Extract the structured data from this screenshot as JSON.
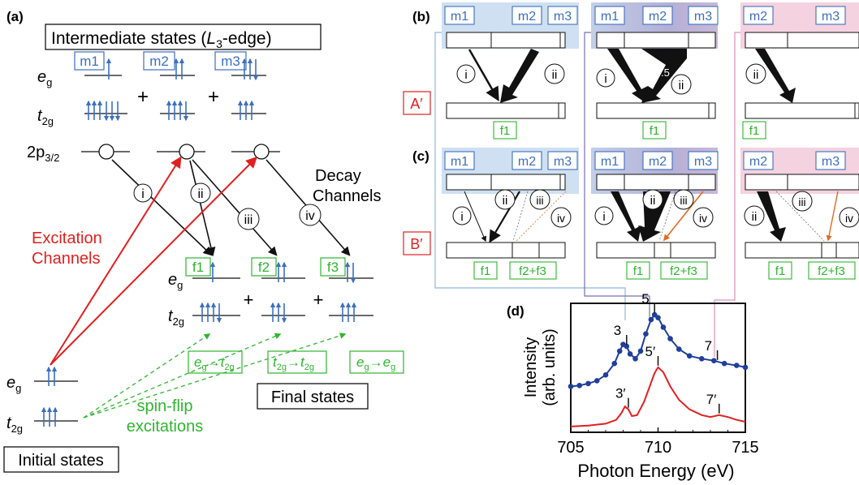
{
  "panel_labels": {
    "a": "(a)",
    "b": "(b)",
    "c": "(c)",
    "d": "(d)"
  },
  "intermediate_title": {
    "main": "Intermediate states (",
    "italic": "L",
    "sub": "3",
    "tail": "-edge)"
  },
  "modes": {
    "m1": "m1",
    "m2": "m2",
    "m3": "m3"
  },
  "finals": {
    "f1": "f1",
    "f2": "f2",
    "f3": "f3",
    "f23": "f2+f3"
  },
  "orbitals": {
    "eg_main": "e",
    "eg_sub": "g",
    "t2g_main": "t",
    "t2g_sub": "2g",
    "core_main": "2p",
    "core_sub": "3/2"
  },
  "plus": "+",
  "roman": {
    "i": "i",
    "ii": "ii",
    "iii": "iii",
    "iv": "iv"
  },
  "text": {
    "decay1": "Decay",
    "decay2": "Channels",
    "excit1": "Excitation",
    "excit2": "Channels",
    "spinflip1": "spin-flip",
    "spinflip2": "excitations",
    "final_states": "Final states",
    "initial_states": "Initial states",
    "scale": "×0.5",
    "row_A": "A′",
    "row_B": "B′"
  },
  "transitions": {
    "t1": {
      "a": "e",
      "as": "g",
      "b": "t",
      "bs": "2g"
    },
    "t2": {
      "a": "t",
      "as": "2g",
      "b": "t",
      "bs": "2g"
    },
    "t3": {
      "a": "e",
      "as": "g",
      "b": "e",
      "bs": "g"
    }
  },
  "colors": {
    "blue": "#3d6fc0",
    "green": "#2fb52f",
    "red": "#e02020",
    "orange": "#e06a20",
    "dark_blue": "#1f3f9a",
    "bg_blue": "#cfe0f2",
    "bg_purple": "#b9b4d8",
    "bg_pink": "#f5d2e0"
  },
  "chart_data": {
    "type": "line",
    "xlabel": "Photon Energy (eV)",
    "ylabel": [
      "Intensity",
      "(arb. units)"
    ],
    "xlim": [
      705,
      715
    ],
    "xticks": [
      "705",
      "710",
      "715"
    ],
    "grid": false,
    "series": [
      {
        "color": "#1f3f9a",
        "marker": "circle",
        "x": [
          705.0,
          705.5,
          706.0,
          706.5,
          707.0,
          707.5,
          707.8,
          708.0,
          708.2,
          708.4,
          708.7,
          709.0,
          709.3,
          709.6,
          709.8,
          710.0,
          710.3,
          710.7,
          711.2,
          711.8,
          712.5,
          713.2,
          713.8,
          714.5,
          715.0
        ],
        "y": [
          0.18,
          0.19,
          0.21,
          0.24,
          0.3,
          0.42,
          0.55,
          0.62,
          0.6,
          0.52,
          0.47,
          0.55,
          0.73,
          0.88,
          0.93,
          0.9,
          0.8,
          0.68,
          0.57,
          0.5,
          0.47,
          0.45,
          0.42,
          0.4,
          0.38
        ]
      },
      {
        "color": "#e02020",
        "marker": "none",
        "x": [
          705.0,
          706.0,
          707.0,
          707.6,
          707.9,
          708.1,
          708.3,
          708.5,
          708.8,
          709.2,
          709.5,
          709.8,
          710.0,
          710.3,
          710.7,
          711.2,
          711.8,
          712.5,
          713.0,
          713.5,
          714.0,
          714.5,
          715.0
        ],
        "y": [
          -0.24,
          -0.23,
          -0.21,
          -0.17,
          -0.1,
          -0.03,
          -0.06,
          -0.13,
          -0.12,
          0.02,
          0.17,
          0.32,
          0.38,
          0.33,
          0.18,
          0.04,
          -0.06,
          -0.12,
          -0.14,
          -0.12,
          -0.14,
          -0.17,
          -0.19
        ]
      }
    ],
    "annotations": [
      {
        "label": "3",
        "x": 708.2
      },
      {
        "label": "5",
        "x": 709.8
      },
      {
        "label": "7",
        "x": 713.4
      },
      {
        "label": "3′",
        "x": 708.3
      },
      {
        "label": "5′",
        "x": 710.0
      },
      {
        "label": "7′",
        "x": 713.5
      }
    ]
  }
}
